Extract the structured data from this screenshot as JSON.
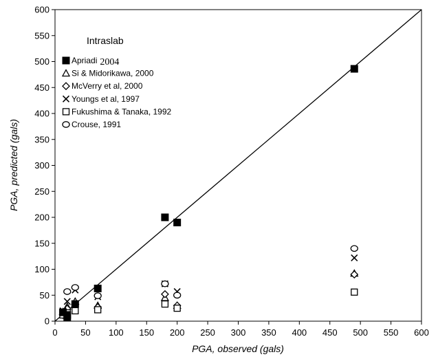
{
  "chart_data": {
    "type": "scatter",
    "xlabel": "PGA, observed (gals)",
    "ylabel": "PGA, predicted (gals)",
    "xlim": [
      0,
      600
    ],
    "ylim": [
      0,
      600
    ],
    "xticks": [
      "0",
      "50",
      "100",
      "150",
      "200",
      "250",
      "300",
      "350",
      "400",
      "450",
      "500",
      "550",
      "600"
    ],
    "yticks": [
      "0",
      "50",
      "100",
      "150",
      "200",
      "250",
      "300",
      "350",
      "400",
      "450",
      "500",
      "550",
      "600"
    ],
    "grid": false,
    "reference_line": {
      "x": [
        0,
        600
      ],
      "y": [
        0,
        600
      ]
    },
    "legend": {
      "title": "Intraslab",
      "placement": "top-left"
    },
    "series": [
      {
        "name": "Apriadi",
        "name_suffix": "2004",
        "marker": "filled-square",
        "x": [
          13,
          20,
          20,
          33,
          70,
          180,
          200,
          490
        ],
        "y": [
          17,
          12,
          8,
          33,
          63,
          200,
          190,
          486
        ]
      },
      {
        "name": "Si & Midorikawa, 2000",
        "marker": "triangle",
        "x": [
          13,
          20,
          33,
          70,
          180,
          200,
          490
        ],
        "y": [
          18,
          28,
          38,
          30,
          45,
          30,
          92
        ]
      },
      {
        "name": "McVerry et al, 2000",
        "marker": "diamond",
        "x": [
          13,
          20,
          33,
          70,
          180,
          200,
          490
        ],
        "y": [
          12,
          24,
          32,
          27,
          52,
          30,
          90
        ]
      },
      {
        "name": "Youngs et al, 1997",
        "marker": "x",
        "x": [
          13,
          20,
          33,
          70,
          180,
          200,
          490
        ],
        "y": [
          20,
          38,
          60,
          47,
          72,
          57,
          122
        ]
      },
      {
        "name": "Fukushima & Tanaka, 1992",
        "marker": "open-square",
        "x": [
          13,
          20,
          33,
          70,
          180,
          200,
          490
        ],
        "y": [
          12,
          16,
          20,
          22,
          33,
          25,
          56
        ]
      },
      {
        "name": "Crouse, 1991",
        "marker": "circle",
        "x": [
          20,
          33,
          70,
          180,
          200,
          490
        ],
        "y": [
          57,
          65,
          49,
          72,
          50,
          140
        ]
      }
    ]
  }
}
